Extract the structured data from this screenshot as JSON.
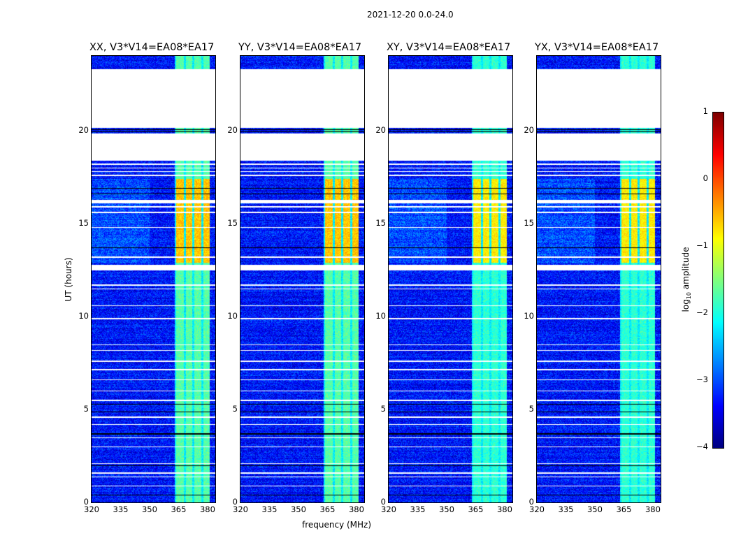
{
  "chart_data": {
    "type": "heatmap",
    "title": "2021-12-20 0.0-24.0",
    "xlabel": "frequency (MHz)",
    "ylabel": "UT (hours)",
    "xlim": [
      320,
      384
    ],
    "ylim": [
      0,
      24
    ],
    "xticks": [
      "320",
      "335",
      "350",
      "365",
      "380"
    ],
    "xtick_values": [
      320,
      335,
      350,
      365,
      380
    ],
    "yticks": [
      "0",
      "5",
      "10",
      "15",
      "20"
    ],
    "ytick_values": [
      0,
      5,
      10,
      15,
      20
    ],
    "panels": [
      {
        "title": "XX, V3*V14=EA08*EA17"
      },
      {
        "title": "YY, V3*V14=EA08*EA17"
      },
      {
        "title": "XY, V3*V14=EA08*EA17"
      },
      {
        "title": "YX, V3*V14=EA08*EA17"
      }
    ],
    "colorbar": {
      "label_main": "log",
      "label_sub": "10",
      "label_rest": " amplitude",
      "range": [
        -4,
        1
      ],
      "ticks": [
        "−4",
        "−3",
        "−2",
        "−1",
        "0",
        "1"
      ],
      "tick_values": [
        -4,
        -3,
        -2,
        -1,
        0,
        1
      ],
      "colormap": "jet"
    },
    "background_level": -3.3,
    "rfi_bands_mhz": [
      [
        363.5,
        367.5
      ],
      [
        368.5,
        372
      ],
      [
        373,
        376.5
      ],
      [
        377.5,
        380.8
      ]
    ],
    "rfi_level_normal": -1.7,
    "rfi_level_strong": -0.6,
    "strong_rfi_hours": [
      12.9,
      17.4
    ],
    "flagged_hours": [
      [
        18.4,
        19.85
      ],
      [
        20.15,
        23.3
      ],
      [
        12.5,
        12.8
      ],
      [
        7.1,
        7.2
      ],
      [
        16.1,
        16.3
      ]
    ],
    "flagged_lines_hours": [
      0.9,
      1.4,
      1.6,
      2.1,
      3.0,
      3.5,
      4.2,
      4.6,
      5.5,
      6.0,
      6.6,
      7.6,
      8.2,
      8.5,
      9.9,
      10.6,
      11.5,
      11.7,
      13.2,
      14.8,
      15.6,
      15.9,
      17.6,
      17.8,
      18.0,
      18.2
    ],
    "dark_lines_hours": [
      0.4,
      2.0,
      3.7,
      4.9,
      5.3,
      13.7,
      16.6,
      16.9,
      19.95,
      20.05
    ]
  }
}
